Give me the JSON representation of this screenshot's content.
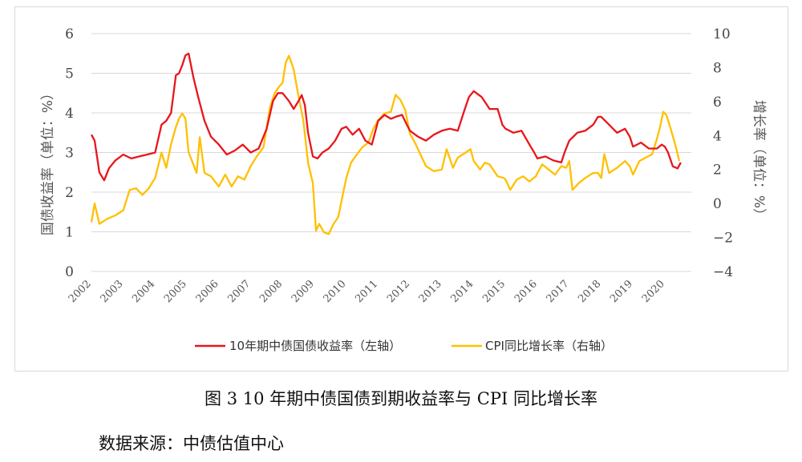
{
  "chart_data": {
    "type": "line",
    "xlabel": "",
    "x_ticks": [
      "2002",
      "2003",
      "2004",
      "2005",
      "2006",
      "2007",
      "2008",
      "2009",
      "2010",
      "2011",
      "2012",
      "2013",
      "2014",
      "2015",
      "2016",
      "2017",
      "2018",
      "2019",
      "2020"
    ],
    "y_left": {
      "label": "国债收益率（单位：%）",
      "lim": [
        0,
        6
      ],
      "ticks": [
        "0",
        "1",
        "2",
        "3",
        "4",
        "5",
        "6"
      ]
    },
    "y_right": {
      "label": "增长率（单位：%）",
      "lim": [
        -4,
        10
      ],
      "ticks": [
        "−4",
        "−2",
        "0",
        "2",
        "4",
        "6",
        "8",
        "10"
      ]
    },
    "grid": "horizontal",
    "legend_position": "bottom",
    "series": [
      {
        "name": "10年期中债国债收益率（左轴）",
        "axis": "left",
        "color": "#e8161b",
        "points": [
          [
            2002.0,
            3.45
          ],
          [
            2002.1,
            3.3
          ],
          [
            2002.25,
            2.5
          ],
          [
            2002.4,
            2.3
          ],
          [
            2002.55,
            2.6
          ],
          [
            2002.75,
            2.8
          ],
          [
            2003.0,
            2.95
          ],
          [
            2003.25,
            2.85
          ],
          [
            2003.5,
            2.9
          ],
          [
            2003.75,
            2.95
          ],
          [
            2004.0,
            3.0
          ],
          [
            2004.2,
            3.7
          ],
          [
            2004.35,
            3.8
          ],
          [
            2004.5,
            4.0
          ],
          [
            2004.65,
            4.95
          ],
          [
            2004.75,
            5.0
          ],
          [
            2004.85,
            5.2
          ],
          [
            2004.95,
            5.45
          ],
          [
            2005.05,
            5.5
          ],
          [
            2005.2,
            4.9
          ],
          [
            2005.35,
            4.4
          ],
          [
            2005.55,
            3.8
          ],
          [
            2005.75,
            3.4
          ],
          [
            2006.0,
            3.2
          ],
          [
            2006.25,
            2.95
          ],
          [
            2006.5,
            3.05
          ],
          [
            2006.75,
            3.2
          ],
          [
            2007.0,
            3.0
          ],
          [
            2007.25,
            3.1
          ],
          [
            2007.5,
            3.6
          ],
          [
            2007.7,
            4.3
          ],
          [
            2007.85,
            4.5
          ],
          [
            2008.0,
            4.5
          ],
          [
            2008.2,
            4.3
          ],
          [
            2008.35,
            4.1
          ],
          [
            2008.5,
            4.3
          ],
          [
            2008.6,
            4.45
          ],
          [
            2008.7,
            4.2
          ],
          [
            2008.8,
            3.5
          ],
          [
            2008.95,
            2.9
          ],
          [
            2009.1,
            2.85
          ],
          [
            2009.25,
            3.0
          ],
          [
            2009.45,
            3.1
          ],
          [
            2009.65,
            3.3
          ],
          [
            2009.85,
            3.6
          ],
          [
            2010.0,
            3.65
          ],
          [
            2010.2,
            3.45
          ],
          [
            2010.4,
            3.6
          ],
          [
            2010.6,
            3.3
          ],
          [
            2010.8,
            3.2
          ],
          [
            2011.0,
            3.8
          ],
          [
            2011.2,
            3.95
          ],
          [
            2011.4,
            3.85
          ],
          [
            2011.55,
            3.9
          ],
          [
            2011.75,
            3.95
          ],
          [
            2011.9,
            3.7
          ],
          [
            2012.0,
            3.55
          ],
          [
            2012.25,
            3.4
          ],
          [
            2012.5,
            3.3
          ],
          [
            2012.75,
            3.45
          ],
          [
            2013.0,
            3.55
          ],
          [
            2013.25,
            3.6
          ],
          [
            2013.5,
            3.55
          ],
          [
            2013.7,
            4.05
          ],
          [
            2013.85,
            4.4
          ],
          [
            2014.0,
            4.55
          ],
          [
            2014.25,
            4.4
          ],
          [
            2014.5,
            4.1
          ],
          [
            2014.75,
            4.1
          ],
          [
            2014.9,
            3.7
          ],
          [
            2015.0,
            3.6
          ],
          [
            2015.25,
            3.5
          ],
          [
            2015.5,
            3.55
          ],
          [
            2015.75,
            3.2
          ],
          [
            2015.9,
            3.0
          ],
          [
            2016.0,
            2.85
          ],
          [
            2016.25,
            2.9
          ],
          [
            2016.5,
            2.8
          ],
          [
            2016.75,
            2.75
          ],
          [
            2016.85,
            3.0
          ],
          [
            2017.0,
            3.3
          ],
          [
            2017.25,
            3.5
          ],
          [
            2017.5,
            3.55
          ],
          [
            2017.75,
            3.7
          ],
          [
            2017.9,
            3.9
          ],
          [
            2018.0,
            3.9
          ],
          [
            2018.25,
            3.7
          ],
          [
            2018.5,
            3.5
          ],
          [
            2018.75,
            3.6
          ],
          [
            2018.9,
            3.4
          ],
          [
            2019.0,
            3.15
          ],
          [
            2019.25,
            3.25
          ],
          [
            2019.5,
            3.1
          ],
          [
            2019.75,
            3.1
          ],
          [
            2019.9,
            3.2
          ],
          [
            2020.0,
            3.15
          ],
          [
            2020.1,
            3.0
          ],
          [
            2020.25,
            2.65
          ],
          [
            2020.4,
            2.6
          ],
          [
            2020.5,
            2.75
          ]
        ]
      },
      {
        "name": "CPI同比增长率（右轴）",
        "axis": "right",
        "color": "#ffc000",
        "points": [
          [
            2002.0,
            -1.1
          ],
          [
            2002.1,
            0.0
          ],
          [
            2002.25,
            -1.2
          ],
          [
            2002.5,
            -0.9
          ],
          [
            2002.75,
            -0.7
          ],
          [
            2003.0,
            -0.4
          ],
          [
            2003.2,
            0.8
          ],
          [
            2003.4,
            0.9
          ],
          [
            2003.6,
            0.5
          ],
          [
            2003.8,
            0.9
          ],
          [
            2004.0,
            1.5
          ],
          [
            2004.2,
            3.0
          ],
          [
            2004.35,
            2.1
          ],
          [
            2004.5,
            3.5
          ],
          [
            2004.65,
            4.5
          ],
          [
            2004.75,
            5.0
          ],
          [
            2004.85,
            5.3
          ],
          [
            2004.95,
            5.0
          ],
          [
            2005.05,
            3.0
          ],
          [
            2005.2,
            2.3
          ],
          [
            2005.3,
            1.8
          ],
          [
            2005.4,
            3.9
          ],
          [
            2005.55,
            1.8
          ],
          [
            2005.75,
            1.6
          ],
          [
            2006.0,
            1.0
          ],
          [
            2006.2,
            1.7
          ],
          [
            2006.4,
            1.0
          ],
          [
            2006.6,
            1.6
          ],
          [
            2006.8,
            1.4
          ],
          [
            2007.0,
            2.2
          ],
          [
            2007.2,
            2.8
          ],
          [
            2007.4,
            3.3
          ],
          [
            2007.6,
            5.6
          ],
          [
            2007.75,
            6.5
          ],
          [
            2007.9,
            6.9
          ],
          [
            2008.0,
            7.1
          ],
          [
            2008.1,
            8.3
          ],
          [
            2008.2,
            8.7
          ],
          [
            2008.35,
            7.9
          ],
          [
            2008.5,
            6.3
          ],
          [
            2008.65,
            4.9
          ],
          [
            2008.8,
            2.4
          ],
          [
            2008.95,
            1.2
          ],
          [
            2009.05,
            -1.6
          ],
          [
            2009.15,
            -1.2
          ],
          [
            2009.3,
            -1.7
          ],
          [
            2009.45,
            -1.8
          ],
          [
            2009.6,
            -1.2
          ],
          [
            2009.75,
            -0.8
          ],
          [
            2009.9,
            0.6
          ],
          [
            2010.0,
            1.5
          ],
          [
            2010.15,
            2.4
          ],
          [
            2010.3,
            2.8
          ],
          [
            2010.5,
            3.3
          ],
          [
            2010.7,
            3.6
          ],
          [
            2010.85,
            4.4
          ],
          [
            2011.0,
            4.9
          ],
          [
            2011.2,
            5.3
          ],
          [
            2011.4,
            5.4
          ],
          [
            2011.55,
            6.4
          ],
          [
            2011.7,
            6.1
          ],
          [
            2011.85,
            5.5
          ],
          [
            2012.0,
            4.1
          ],
          [
            2012.15,
            3.6
          ],
          [
            2012.3,
            3.0
          ],
          [
            2012.5,
            2.2
          ],
          [
            2012.75,
            1.9
          ],
          [
            2013.0,
            2.0
          ],
          [
            2013.15,
            3.2
          ],
          [
            2013.35,
            2.1
          ],
          [
            2013.5,
            2.7
          ],
          [
            2013.75,
            3.0
          ],
          [
            2013.9,
            3.2
          ],
          [
            2014.0,
            2.5
          ],
          [
            2014.2,
            2.0
          ],
          [
            2014.35,
            2.4
          ],
          [
            2014.5,
            2.3
          ],
          [
            2014.75,
            1.6
          ],
          [
            2014.95,
            1.5
          ],
          [
            2015.0,
            1.4
          ],
          [
            2015.15,
            0.8
          ],
          [
            2015.35,
            1.4
          ],
          [
            2015.55,
            1.6
          ],
          [
            2015.75,
            1.3
          ],
          [
            2015.95,
            1.6
          ],
          [
            2016.0,
            1.8
          ],
          [
            2016.15,
            2.3
          ],
          [
            2016.35,
            2.0
          ],
          [
            2016.55,
            1.7
          ],
          [
            2016.75,
            2.2
          ],
          [
            2016.9,
            2.1
          ],
          [
            2017.0,
            2.5
          ],
          [
            2017.1,
            0.8
          ],
          [
            2017.3,
            1.2
          ],
          [
            2017.5,
            1.5
          ],
          [
            2017.75,
            1.8
          ],
          [
            2017.9,
            1.8
          ],
          [
            2018.0,
            1.5
          ],
          [
            2018.1,
            2.9
          ],
          [
            2018.25,
            1.8
          ],
          [
            2018.5,
            2.1
          ],
          [
            2018.75,
            2.5
          ],
          [
            2018.9,
            2.2
          ],
          [
            2019.0,
            1.7
          ],
          [
            2019.2,
            2.5
          ],
          [
            2019.4,
            2.7
          ],
          [
            2019.6,
            2.9
          ],
          [
            2019.75,
            3.8
          ],
          [
            2019.85,
            4.5
          ],
          [
            2019.95,
            5.4
          ],
          [
            2020.05,
            5.2
          ],
          [
            2020.2,
            4.3
          ],
          [
            2020.35,
            3.3
          ],
          [
            2020.45,
            2.5
          ]
        ]
      }
    ]
  },
  "caption": "图 3 10 年期中债国债到期收益率与 CPI 同比增长率",
  "source": "数据来源：中债估值中心"
}
